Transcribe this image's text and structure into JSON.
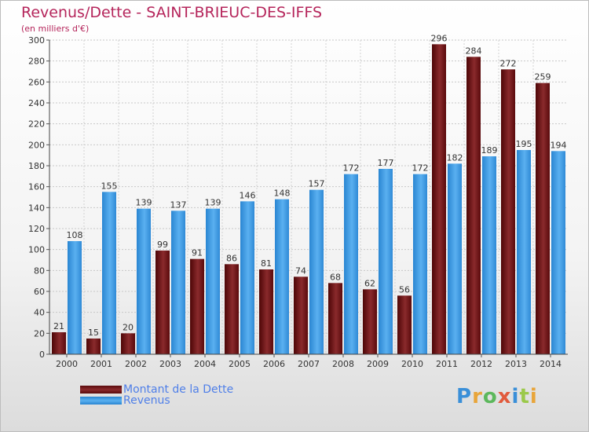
{
  "header": {
    "title": "Revenus/Dette - SAINT-BRIEUC-DES-IFFS",
    "subtitle": "(en milliers d'€)"
  },
  "chart_data": {
    "type": "bar",
    "title": "Revenus/Dette - SAINT-BRIEUC-DES-IFFS",
    "ylabel": "(en milliers d'€)",
    "xlabel": "",
    "ylim": [
      0,
      300
    ],
    "yticks": [
      0,
      20,
      40,
      60,
      80,
      100,
      120,
      140,
      160,
      180,
      200,
      220,
      240,
      260,
      280,
      300
    ],
    "grid": true,
    "legend": "bottom-left",
    "categories": [
      "2000",
      "2001",
      "2002",
      "2003",
      "2004",
      "2005",
      "2006",
      "2007",
      "2008",
      "2009",
      "2010",
      "2011",
      "2012",
      "2013",
      "2014"
    ],
    "series": [
      {
        "name": "Montant de la Dette",
        "color": "#7a1416",
        "values": [
          21,
          15,
          20,
          99,
          91,
          86,
          81,
          74,
          68,
          62,
          56,
          296,
          284,
          272,
          259
        ]
      },
      {
        "name": "Revenus",
        "color": "#3a9be6",
        "values": [
          108,
          155,
          139,
          137,
          139,
          146,
          148,
          157,
          172,
          177,
          172,
          182,
          189,
          195,
          194
        ]
      }
    ]
  },
  "legend": {
    "items": [
      {
        "label": "Montant de la Dette",
        "color": "#7a1416"
      },
      {
        "label": "Revenus",
        "color": "#3a9be6"
      }
    ]
  },
  "logo": {
    "text": "Proxiti",
    "letters": [
      {
        "ch": "P",
        "color": "#3a8fd8"
      },
      {
        "ch": "r",
        "color": "#e8a53a"
      },
      {
        "ch": "o",
        "color": "#5cb85c"
      },
      {
        "ch": "x",
        "color": "#e15a3c"
      },
      {
        "ch": "i",
        "color": "#3a8fd8"
      },
      {
        "ch": "t",
        "color": "#9bc94a"
      },
      {
        "ch": "i",
        "color": "#e8a53a"
      }
    ]
  }
}
